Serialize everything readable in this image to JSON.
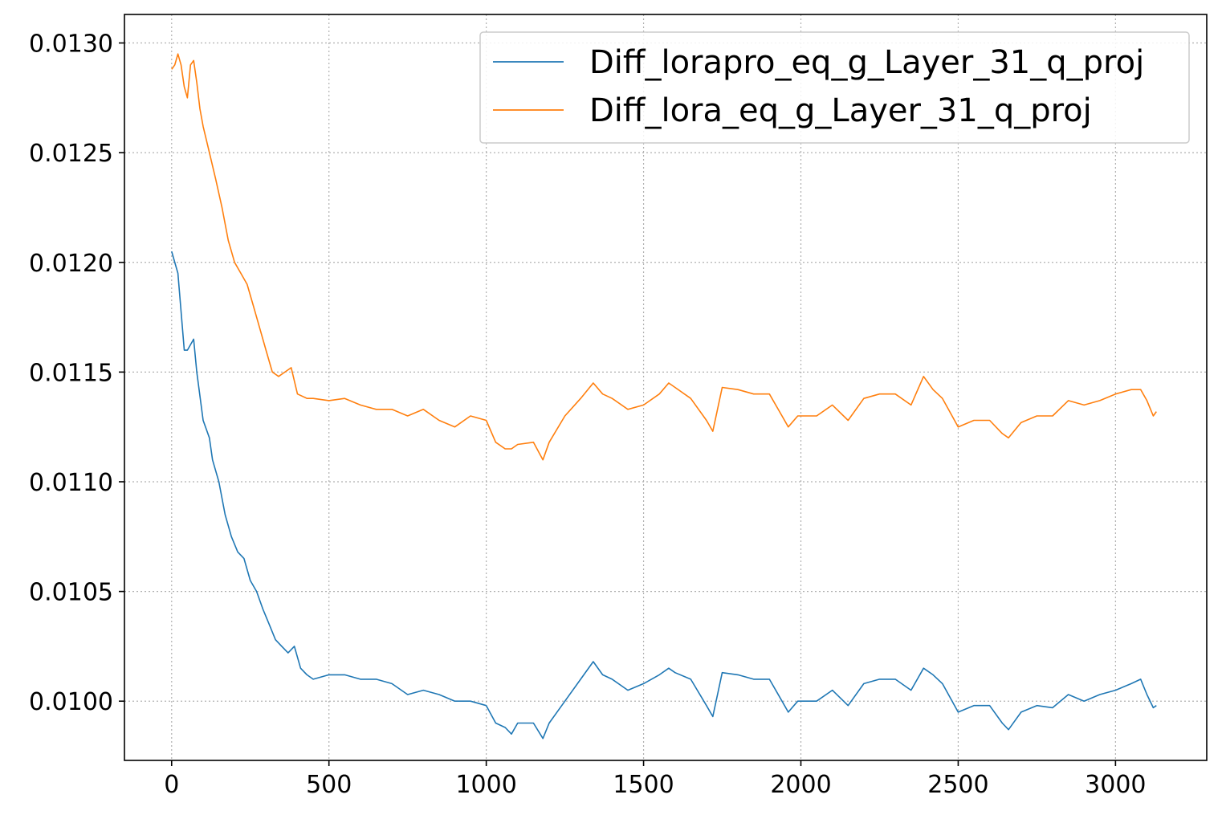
{
  "chart_data": {
    "type": "line",
    "title": "",
    "xlabel": "",
    "ylabel": "",
    "xlim": [
      -150,
      3290
    ],
    "ylim": [
      0.00973,
      0.01313
    ],
    "grid": true,
    "legend_position": "top-right",
    "x_ticks": [
      0,
      500,
      1000,
      1500,
      2000,
      2500,
      3000
    ],
    "x_tick_labels": [
      "0",
      "500",
      "1000",
      "1500",
      "2000",
      "2500",
      "3000"
    ],
    "y_ticks": [
      0.01,
      0.0105,
      0.011,
      0.0115,
      0.012,
      0.0125,
      0.013
    ],
    "y_tick_labels": [
      "0.0100",
      "0.0105",
      "0.0110",
      "0.0115",
      "0.0120",
      "0.0125",
      "0.0130"
    ],
    "series": [
      {
        "name": "Diff_lorapro_eq_g_Layer_31_q_proj",
        "color": "#1f77b4",
        "x": [
          0,
          20,
          40,
          50,
          70,
          80,
          100,
          120,
          130,
          150,
          170,
          190,
          210,
          230,
          250,
          270,
          290,
          310,
          330,
          350,
          370,
          390,
          410,
          430,
          450,
          500,
          550,
          600,
          650,
          700,
          750,
          800,
          850,
          900,
          950,
          1000,
          1030,
          1060,
          1080,
          1100,
          1150,
          1180,
          1200,
          1250,
          1300,
          1340,
          1370,
          1400,
          1450,
          1500,
          1550,
          1580,
          1600,
          1650,
          1700,
          1720,
          1750,
          1800,
          1850,
          1900,
          1940,
          1960,
          1990,
          2050,
          2100,
          2150,
          2200,
          2250,
          2300,
          2350,
          2390,
          2420,
          2450,
          2500,
          2550,
          2600,
          2640,
          2660,
          2700,
          2750,
          2800,
          2850,
          2900,
          2950,
          3000,
          3050,
          3080,
          3100,
          3120,
          3130
        ],
        "y": [
          0.01205,
          0.01195,
          0.0116,
          0.0116,
          0.01165,
          0.0115,
          0.01128,
          0.0112,
          0.0111,
          0.011,
          0.01085,
          0.01075,
          0.01068,
          0.01065,
          0.01055,
          0.0105,
          0.01042,
          0.01035,
          0.01028,
          0.01025,
          0.01022,
          0.01025,
          0.01015,
          0.01012,
          0.0101,
          0.01012,
          0.01012,
          0.0101,
          0.0101,
          0.01008,
          0.01003,
          0.01005,
          0.01003,
          0.01,
          0.01,
          0.00998,
          0.0099,
          0.00988,
          0.00985,
          0.0099,
          0.0099,
          0.00983,
          0.0099,
          0.01,
          0.0101,
          0.01018,
          0.01012,
          0.0101,
          0.01005,
          0.01008,
          0.01012,
          0.01015,
          0.01013,
          0.0101,
          0.00998,
          0.00993,
          0.01013,
          0.01012,
          0.0101,
          0.0101,
          0.01,
          0.00995,
          0.01,
          0.01,
          0.01005,
          0.00998,
          0.01008,
          0.0101,
          0.0101,
          0.01005,
          0.01015,
          0.01012,
          0.01008,
          0.00995,
          0.00998,
          0.00998,
          0.0099,
          0.00987,
          0.00995,
          0.00998,
          0.00997,
          0.01003,
          0.01,
          0.01003,
          0.01005,
          0.01008,
          0.0101,
          0.01003,
          0.00997,
          0.00998
        ]
      },
      {
        "name": "Diff_lora_eq_g_Layer_31_q_proj",
        "color": "#ff7f0e",
        "x": [
          0,
          10,
          20,
          30,
          40,
          50,
          60,
          70,
          80,
          90,
          100,
          120,
          140,
          160,
          180,
          200,
          220,
          240,
          260,
          280,
          300,
          320,
          340,
          360,
          380,
          400,
          430,
          450,
          500,
          550,
          600,
          650,
          700,
          750,
          800,
          850,
          900,
          950,
          1000,
          1030,
          1060,
          1080,
          1100,
          1150,
          1180,
          1200,
          1250,
          1300,
          1340,
          1370,
          1400,
          1450,
          1500,
          1550,
          1580,
          1600,
          1650,
          1700,
          1720,
          1750,
          1800,
          1850,
          1900,
          1940,
          1960,
          1990,
          2050,
          2100,
          2150,
          2200,
          2250,
          2300,
          2350,
          2390,
          2420,
          2450,
          2500,
          2550,
          2600,
          2640,
          2660,
          2700,
          2750,
          2800,
          2850,
          2900,
          2950,
          3000,
          3050,
          3080,
          3100,
          3120,
          3130
        ],
        "y": [
          0.01288,
          0.0129,
          0.01295,
          0.0129,
          0.0128,
          0.01275,
          0.0129,
          0.01292,
          0.01282,
          0.0127,
          0.01262,
          0.0125,
          0.01238,
          0.01225,
          0.0121,
          0.012,
          0.01195,
          0.0119,
          0.0118,
          0.0117,
          0.0116,
          0.0115,
          0.01148,
          0.0115,
          0.01152,
          0.0114,
          0.01138,
          0.01138,
          0.01137,
          0.01138,
          0.01135,
          0.01133,
          0.01133,
          0.0113,
          0.01133,
          0.01128,
          0.01125,
          0.0113,
          0.01128,
          0.01118,
          0.01115,
          0.01115,
          0.01117,
          0.01118,
          0.0111,
          0.01118,
          0.0113,
          0.01138,
          0.01145,
          0.0114,
          0.01138,
          0.01133,
          0.01135,
          0.0114,
          0.01145,
          0.01143,
          0.01138,
          0.01128,
          0.01123,
          0.01143,
          0.01142,
          0.0114,
          0.0114,
          0.0113,
          0.01125,
          0.0113,
          0.0113,
          0.01135,
          0.01128,
          0.01138,
          0.0114,
          0.0114,
          0.01135,
          0.01148,
          0.01142,
          0.01138,
          0.01125,
          0.01128,
          0.01128,
          0.01122,
          0.0112,
          0.01127,
          0.0113,
          0.0113,
          0.01137,
          0.01135,
          0.01137,
          0.0114,
          0.01142,
          0.01142,
          0.01137,
          0.0113,
          0.01132
        ]
      }
    ]
  }
}
